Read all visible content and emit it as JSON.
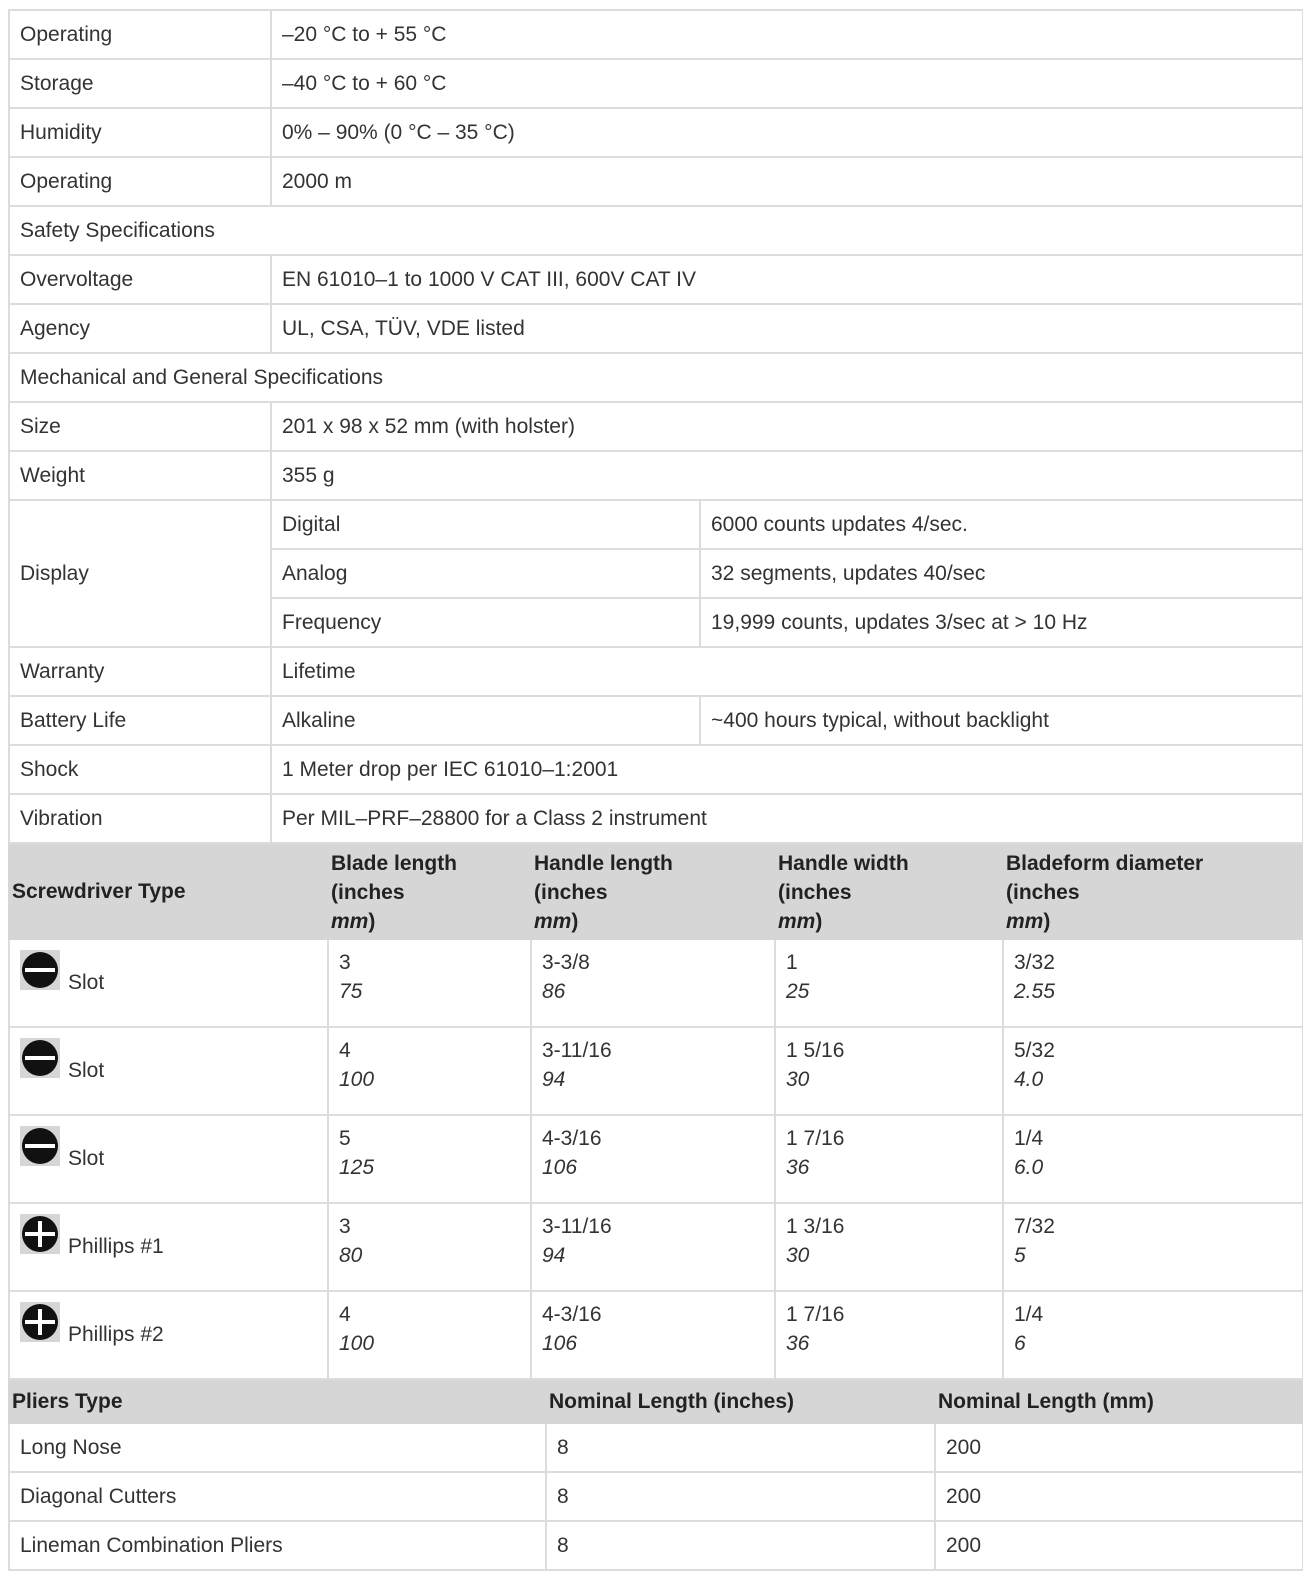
{
  "specs": {
    "rows": [
      {
        "label": "Operating",
        "value": "–20 °C to + 55 °C"
      },
      {
        "label": "Storage",
        "value": "–40 °C to + 60 °C"
      },
      {
        "label": "Humidity",
        "value": "0% – 90% (0 °C – 35 °C)"
      },
      {
        "label": "Operating",
        "value": "2000 m"
      },
      {
        "section": "Safety Specifications"
      },
      {
        "label": "Overvoltage",
        "value": "EN 61010–1 to 1000 V CAT III, 600V CAT IV"
      },
      {
        "label": "Agency",
        "value": "UL, CSA, TÜV, VDE listed"
      },
      {
        "section": "Mechanical and General Specifications"
      },
      {
        "label": "Size",
        "value": "201 x 98 x 52 mm (with holster)"
      },
      {
        "label": "Weight",
        "value": "355 g"
      }
    ],
    "display": {
      "label": "Display",
      "rows": [
        {
          "name": "Digital",
          "value": "6000 counts updates 4/sec."
        },
        {
          "name": "Analog",
          "value": "32 segments, updates 40/sec"
        },
        {
          "name": "Frequency",
          "value": "19,999 counts, updates 3/sec at > 10 Hz"
        }
      ]
    },
    "warranty": {
      "label": "Warranty",
      "value": "Lifetime"
    },
    "battery": {
      "label": "Battery Life",
      "type": "Alkaline",
      "value": "~400 hours typical, without backlight"
    },
    "shock": {
      "label": "Shock",
      "value": "1 Meter drop per IEC 61010–1:2001"
    },
    "vibration": {
      "label": "Vibration",
      "value": "Per MIL–PRF–28800 for a Class 2 instrument"
    }
  },
  "screwdrivers": {
    "headers": {
      "type": "Screwdriver Type",
      "blade": {
        "line1": "Blade length",
        "line2": "(inches",
        "unit": "mm",
        "close": ")"
      },
      "handle_length": {
        "line1": "Handle length",
        "line2": "(inches",
        "unit": "mm",
        "close": ")"
      },
      "handle_width": {
        "line1": "Handle width",
        "line2": "(inches",
        "unit": "mm",
        "close": ")"
      },
      "diameter": {
        "line1": "Bladeform diameter",
        "line2": "(inches",
        "unit": "mm",
        "close": ")"
      }
    },
    "rows": [
      {
        "icon": "slot-icon",
        "type": "Slot",
        "blade_in": "3",
        "blade_mm": "75",
        "hl_in": "3-3/8",
        "hl_mm": "86",
        "hw_in": "1",
        "hw_mm": "25",
        "d_in": "3/32",
        "d_mm": "2.55"
      },
      {
        "icon": "slot-icon",
        "type": "Slot",
        "blade_in": "4",
        "blade_mm": "100",
        "hl_in": "3-11/16",
        "hl_mm": "94",
        "hw_in": "1 5/16",
        "hw_mm": "30",
        "d_in": "5/32",
        "d_mm": "4.0"
      },
      {
        "icon": "slot-icon",
        "type": "Slot",
        "blade_in": "5",
        "blade_mm": "125",
        "hl_in": "4-3/16",
        "hl_mm": "106",
        "hw_in": "1 7/16",
        "hw_mm": "36",
        "d_in": "1/4",
        "d_mm": "6.0"
      },
      {
        "icon": "phillips-icon",
        "type": "Phillips #1",
        "blade_in": "3",
        "blade_mm": "80",
        "hl_in": "3-11/16",
        "hl_mm": "94",
        "hw_in": "1 3/16",
        "hw_mm": "30",
        "d_in": "7/32",
        "d_mm": "5"
      },
      {
        "icon": "phillips-icon",
        "type": "Phillips #2",
        "blade_in": "4",
        "blade_mm": "100",
        "hl_in": "4-3/16",
        "hl_mm": "106",
        "hw_in": "1 7/16",
        "hw_mm": "36",
        "d_in": "1/4",
        "d_mm": "6"
      }
    ]
  },
  "pliers": {
    "headers": {
      "type": "Pliers Type",
      "inches": "Nominal Length (inches)",
      "mm": "Nominal Length (mm)"
    },
    "rows": [
      {
        "type": "Long Nose",
        "inches": "8",
        "mm": "200"
      },
      {
        "type": "Diagonal Cutters",
        "inches": "8",
        "mm": "200"
      },
      {
        "type": "Lineman Combination Pliers",
        "inches": "8",
        "mm": "200"
      }
    ]
  }
}
